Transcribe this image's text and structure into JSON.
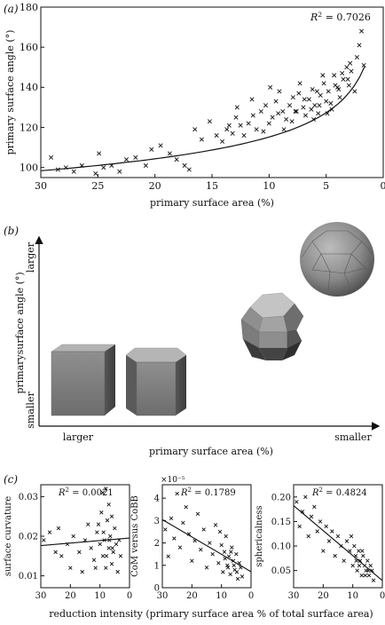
{
  "panels": {
    "a": {
      "label": "(a)"
    },
    "b": {
      "label": "(b)",
      "y_axis_label": "primarysurface angle (°)",
      "y_top": "larger",
      "y_bottom": "smaller",
      "x_axis_label": "primary surface area (%)",
      "x_left": "larger",
      "x_right": "smaller"
    },
    "c": {
      "label": "(c)",
      "shared_xlabel": "reduction intensity (primary surface area % of total surface area)"
    }
  },
  "chart_data": [
    {
      "id": "a",
      "type": "scatter",
      "xlabel": "primary surface area (%)",
      "ylabel": "primary surface angle (°)",
      "xlim": [
        30,
        0
      ],
      "ylim": [
        95,
        180
      ],
      "xticks": [
        30,
        25,
        20,
        15,
        10,
        5,
        0
      ],
      "yticks": [
        100,
        120,
        140,
        160,
        180
      ],
      "annotation": "R² = 0.7026",
      "fit": "curve",
      "points": [
        [
          29.1,
          105
        ],
        [
          28.5,
          99
        ],
        [
          27.8,
          100
        ],
        [
          27.1,
          98
        ],
        [
          26.4,
          101
        ],
        [
          25.2,
          97
        ],
        [
          24.9,
          107
        ],
        [
          24.5,
          100
        ],
        [
          23.8,
          101
        ],
        [
          23.1,
          98
        ],
        [
          22.5,
          104
        ],
        [
          21.7,
          105
        ],
        [
          20.8,
          101
        ],
        [
          20.3,
          109
        ],
        [
          19.5,
          111
        ],
        [
          18.7,
          107
        ],
        [
          18.1,
          104
        ],
        [
          17.4,
          101
        ],
        [
          17.0,
          99
        ],
        [
          16.5,
          119
        ],
        [
          15.9,
          114
        ],
        [
          15.2,
          123
        ],
        [
          14.6,
          116
        ],
        [
          14.1,
          113
        ],
        [
          13.7,
          119
        ],
        [
          13.2,
          117
        ],
        [
          12.8,
          130
        ],
        [
          12.5,
          121
        ],
        [
          12.2,
          116
        ],
        [
          11.8,
          122
        ],
        [
          11.4,
          126
        ],
        [
          11.1,
          119
        ],
        [
          10.7,
          128
        ],
        [
          10.3,
          131
        ],
        [
          10.0,
          122
        ],
        [
          9.7,
          125
        ],
        [
          9.4,
          133
        ],
        [
          9.1,
          138
        ],
        [
          8.8,
          128
        ],
        [
          8.5,
          124
        ],
        [
          8.2,
          131
        ],
        [
          7.9,
          135
        ],
        [
          7.6,
          128
        ],
        [
          7.3,
          142
        ],
        [
          7.0,
          130
        ],
        [
          6.8,
          126
        ],
        [
          6.5,
          134
        ],
        [
          6.2,
          139
        ],
        [
          6.0,
          131
        ],
        [
          5.7,
          127
        ],
        [
          5.5,
          136
        ],
        [
          5.2,
          142
        ],
        [
          5.0,
          133
        ],
        [
          4.8,
          138
        ],
        [
          4.5,
          129
        ],
        [
          4.3,
          146
        ],
        [
          4.0,
          140
        ],
        [
          3.8,
          135
        ],
        [
          3.5,
          144
        ],
        [
          3.2,
          150
        ],
        [
          3.0,
          141
        ],
        [
          2.8,
          148
        ],
        [
          2.5,
          138
        ],
        [
          2.3,
          155
        ],
        [
          2.1,
          161
        ],
        [
          1.9,
          168
        ],
        [
          1.7,
          151
        ],
        [
          11.5,
          134
        ],
        [
          9.9,
          140
        ],
        [
          8.7,
          119
        ],
        [
          7.4,
          137
        ],
        [
          6.1,
          124
        ],
        [
          5.3,
          146
        ],
        [
          4.6,
          132
        ],
        [
          12.9,
          125
        ],
        [
          10.5,
          118
        ],
        [
          9.2,
          127
        ],
        [
          8.0,
          123
        ],
        [
          6.9,
          134
        ],
        [
          5.8,
          138
        ],
        [
          4.2,
          141
        ],
        [
          3.6,
          147
        ],
        [
          2.9,
          152
        ],
        [
          13.5,
          121
        ],
        [
          7.7,
          128
        ],
        [
          6.3,
          129
        ],
        [
          5.6,
          131
        ],
        [
          4.9,
          127
        ],
        [
          3.9,
          139
        ],
        [
          3.1,
          144
        ]
      ]
    },
    {
      "id": "c1",
      "type": "scatter",
      "ylabel": "surface curvature",
      "xlim": [
        30,
        0
      ],
      "ylim": [
        0.007,
        0.033
      ],
      "xticks": [
        30,
        20,
        10,
        0
      ],
      "yticks": [
        0.01,
        0.02,
        0.03
      ],
      "ytick_labels": [
        "0.01",
        "0.02",
        "0.03"
      ],
      "annotation": "R² = 0.0021",
      "fit": "linear",
      "points": [
        [
          29,
          0.019
        ],
        [
          27,
          0.021
        ],
        [
          25,
          0.016
        ],
        [
          24,
          0.022
        ],
        [
          23,
          0.015
        ],
        [
          21,
          0.018
        ],
        [
          20,
          0.012
        ],
        [
          19,
          0.02
        ],
        [
          17,
          0.016
        ],
        [
          16,
          0.011
        ],
        [
          15,
          0.019
        ],
        [
          14,
          0.023
        ],
        [
          13,
          0.017
        ],
        [
          12,
          0.014
        ],
        [
          11,
          0.021
        ],
        [
          10,
          0.018
        ],
        [
          9.5,
          0.026
        ],
        [
          9,
          0.015
        ],
        [
          8.5,
          0.019
        ],
        [
          8,
          0.012
        ],
        [
          7.5,
          0.024
        ],
        [
          7,
          0.017
        ],
        [
          6.5,
          0.02
        ],
        [
          6,
          0.013
        ],
        [
          5.5,
          0.016
        ],
        [
          5,
          0.022
        ],
        [
          4.5,
          0.018
        ],
        [
          4,
          0.011
        ],
        [
          3.5,
          0.019
        ],
        [
          3,
          0.015
        ],
        [
          9,
          0.031
        ],
        [
          8,
          0.032
        ],
        [
          7,
          0.028
        ],
        [
          6,
          0.025
        ],
        [
          10.5,
          0.023
        ],
        [
          11.5,
          0.012
        ],
        [
          8.8,
          0.021
        ],
        [
          7.8,
          0.015
        ],
        [
          6.8,
          0.019
        ],
        [
          5.8,
          0.017
        ]
      ]
    },
    {
      "id": "c2",
      "type": "scatter",
      "ylabel": "CoM versus CoBB",
      "ymultiplier": "×10⁻⁵",
      "xlim": [
        30,
        0
      ],
      "ylim": [
        0,
        4.6
      ],
      "xticks": [
        30,
        20,
        10,
        0
      ],
      "yticks": [
        0,
        1,
        2,
        3,
        4
      ],
      "annotation": "R² = 0.1789",
      "fit": "linear",
      "points": [
        [
          29,
          2.6
        ],
        [
          28,
          1.4
        ],
        [
          27,
          3.1
        ],
        [
          26,
          2.2
        ],
        [
          25,
          4.2
        ],
        [
          24,
          1.8
        ],
        [
          23,
          2.9
        ],
        [
          22,
          3.6
        ],
        [
          21,
          2.4
        ],
        [
          20,
          1.2
        ],
        [
          19,
          2.1
        ],
        [
          18,
          3.3
        ],
        [
          17,
          1.7
        ],
        [
          16,
          2.6
        ],
        [
          15,
          0.9
        ],
        [
          14,
          2.0
        ],
        [
          13,
          1.5
        ],
        [
          12,
          2.8
        ],
        [
          11,
          1.1
        ],
        [
          10,
          1.9
        ],
        [
          9.5,
          0.7
        ],
        [
          9,
          1.6
        ],
        [
          8.5,
          2.3
        ],
        [
          8,
          1.0
        ],
        [
          7.5,
          1.4
        ],
        [
          7,
          0.6
        ],
        [
          6.5,
          1.8
        ],
        [
          6,
          1.2
        ],
        [
          5.5,
          0.8
        ],
        [
          5,
          1.5
        ],
        [
          4.5,
          0.4
        ],
        [
          4,
          1.1
        ],
        [
          3.5,
          0.9
        ],
        [
          3,
          0.5
        ],
        [
          10.5,
          2.5
        ],
        [
          8.8,
          1.3
        ],
        [
          7.8,
          0.9
        ],
        [
          6.8,
          1.6
        ],
        [
          5.8,
          1.0
        ],
        [
          4.8,
          0.7
        ]
      ]
    },
    {
      "id": "c3",
      "type": "scatter",
      "ylabel": "sphericalness",
      "xlim": [
        30,
        0
      ],
      "ylim": [
        0.015,
        0.225
      ],
      "xticks": [
        30,
        20,
        10,
        0
      ],
      "yticks": [
        0.05,
        0.1,
        0.15,
        0.2
      ],
      "ytick_labels": [
        "0.05",
        "0.10",
        "0.15",
        "0.20"
      ],
      "annotation": "R² = 0.4824",
      "fit": "linear",
      "points": [
        [
          29,
          0.19
        ],
        [
          28,
          0.14
        ],
        [
          27,
          0.17
        ],
        [
          26,
          0.2
        ],
        [
          25,
          0.12
        ],
        [
          24,
          0.16
        ],
        [
          23,
          0.18
        ],
        [
          22,
          0.13
        ],
        [
          21,
          0.15
        ],
        [
          20,
          0.09
        ],
        [
          19,
          0.14
        ],
        [
          18,
          0.11
        ],
        [
          17,
          0.13
        ],
        [
          16,
          0.08
        ],
        [
          15,
          0.12
        ],
        [
          14,
          0.1
        ],
        [
          13,
          0.07
        ],
        [
          12,
          0.11
        ],
        [
          11,
          0.09
        ],
        [
          10,
          0.06
        ],
        [
          9.5,
          0.1
        ],
        [
          9,
          0.08
        ],
        [
          8.5,
          0.05
        ],
        [
          8,
          0.09
        ],
        [
          7.5,
          0.07
        ],
        [
          7,
          0.04
        ],
        [
          6.5,
          0.08
        ],
        [
          6,
          0.06
        ],
        [
          5.5,
          0.05
        ],
        [
          5,
          0.07
        ],
        [
          4.5,
          0.04
        ],
        [
          4,
          0.06
        ],
        [
          3.5,
          0.05
        ],
        [
          3,
          0.03
        ],
        [
          10.5,
          0.12
        ],
        [
          8.8,
          0.07
        ],
        [
          7.8,
          0.06
        ],
        [
          6.8,
          0.09
        ],
        [
          5.8,
          0.04
        ],
        [
          4.8,
          0.05
        ]
      ]
    }
  ]
}
